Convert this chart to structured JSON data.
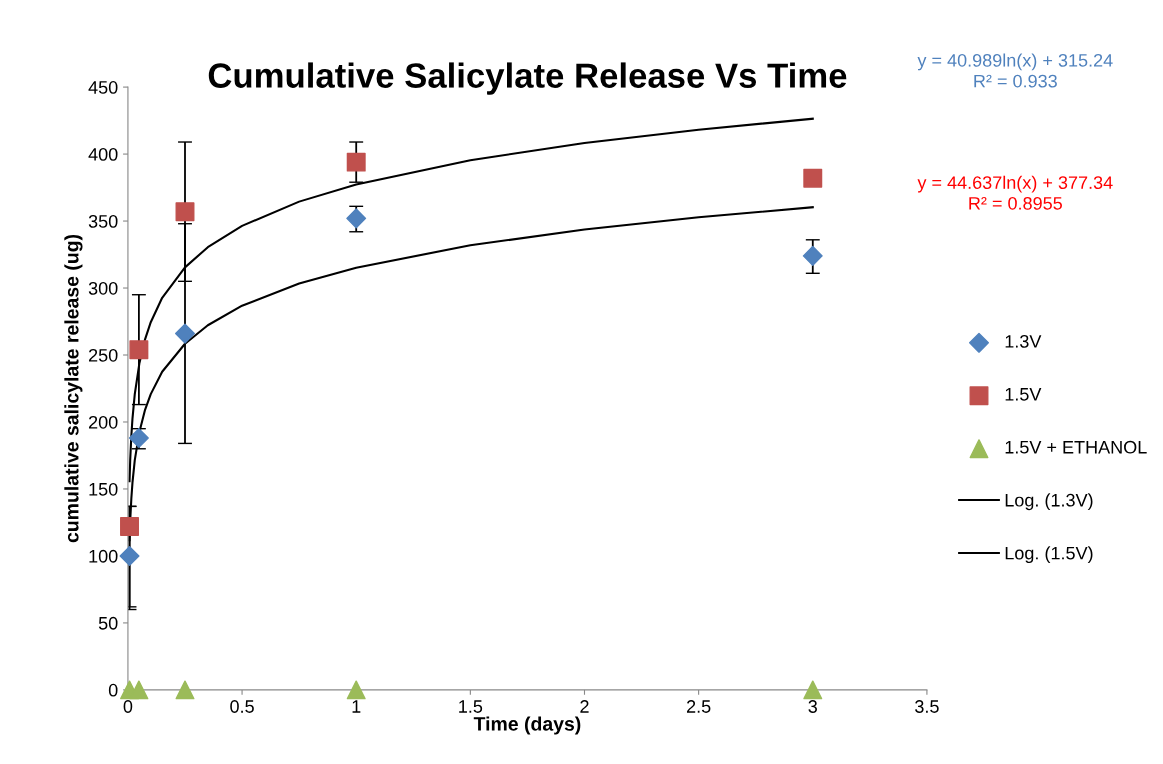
{
  "chart_data": {
    "type": "scatter",
    "title": "Cumulative Salicylate Release Vs Time",
    "xlabel": "Time (days)",
    "ylabel": "cumulative salicylate release (ug)",
    "annotations": [
      "y = 40.989ln(x) + 315.24\nR² = 0.933",
      "y = 44.637ln(x) + 377.34\nR² = 0.8955"
    ],
    "series": [
      {
        "name": "1.3V",
        "color": "#4f81bd",
        "marker": "diamond",
        "x": [
          0.007,
          0.048,
          0.25,
          1,
          3
        ],
        "values": [
          100,
          188,
          266,
          352,
          324
        ],
        "errors": [
          [
            60,
            137
          ],
          [
            180,
            195
          ],
          [
            184,
            348
          ],
          [
            342,
            361
          ],
          [
            311,
            336
          ]
        ]
      },
      {
        "name": "1.5V",
        "color": "#c0504d",
        "marker": "square",
        "x": [
          0.007,
          0.048,
          0.25,
          1,
          3
        ],
        "values": [
          122,
          254,
          357,
          394,
          382
        ],
        "errors": [
          [
            62,
            137
          ],
          [
            213,
            295
          ],
          [
            305,
            409
          ],
          [
            379,
            409
          ],
          null
        ]
      },
      {
        "name": "1.5V + ETHANOL",
        "color": "#9bbb59",
        "marker": "triangle",
        "x": [
          0.007,
          0.048,
          0.25,
          1,
          3
        ],
        "values": [
          0,
          0,
          0,
          0,
          0
        ]
      },
      {
        "name": "Log. (1.3V)",
        "type": "line",
        "color": "#000000",
        "marker": "none",
        "x": [
          0.007,
          0.01,
          0.015,
          0.02,
          0.03,
          0.05,
          0.075,
          0.1,
          0.15,
          0.25,
          0.35,
          0.5,
          0.75,
          1,
          1.5,
          2,
          2.5,
          3
        ],
        "values": [
          111.8,
          126.5,
          143.1,
          154.9,
          171.5,
          192.4,
          209.1,
          220.8,
          237.5,
          258.4,
          272.2,
          286.8,
          303.4,
          315.2,
          331.9,
          343.7,
          352.8,
          360.3
        ]
      },
      {
        "name": "Log. (1.5V)",
        "type": "line",
        "color": "#000000",
        "marker": "none",
        "x": [
          0.007,
          0.01,
          0.015,
          0.02,
          0.03,
          0.05,
          0.075,
          0.1,
          0.15,
          0.25,
          0.35,
          0.5,
          0.75,
          1,
          1.5,
          2,
          2.5,
          3
        ],
        "values": [
          155.8,
          171.8,
          189.9,
          202.7,
          220.8,
          243.6,
          261.7,
          274.5,
          292.7,
          315.4,
          330.5,
          346.4,
          364.5,
          377.3,
          395.4,
          408.3,
          418.2,
          426.4
        ]
      }
    ],
    "xlim": [
      0,
      3.5
    ],
    "xticks": [
      0,
      0.5,
      1,
      1.5,
      2,
      2.5,
      3,
      3.5
    ],
    "ylim": [
      0,
      450
    ],
    "yticks": [
      0,
      50,
      100,
      150,
      200,
      250,
      300,
      350,
      400,
      450
    ],
    "grid": false,
    "legend": "right"
  }
}
